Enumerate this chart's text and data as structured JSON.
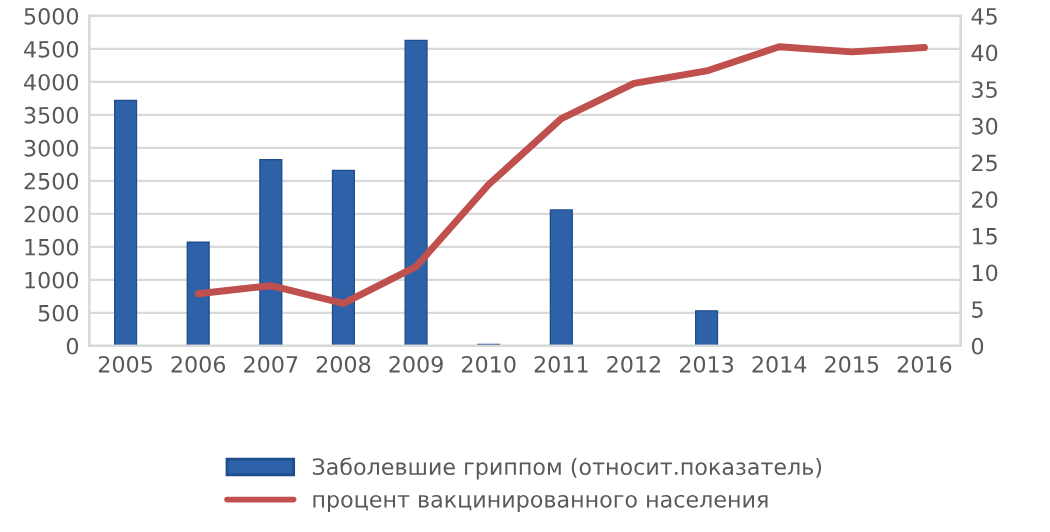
{
  "chart_data": {
    "type": "bar",
    "categories": [
      "2005",
      "2006",
      "2007",
      "2008",
      "2009",
      "2010",
      "2011",
      "2012",
      "2013",
      "2014",
      "2015",
      "2016"
    ],
    "series": [
      {
        "name": "Заболевшие гриппом (относит.показатель)",
        "color": "#2e62a8",
        "values": [
          3720,
          1570,
          2820,
          2660,
          4630,
          20,
          2060,
          null,
          530,
          null,
          null,
          null
        ]
      },
      {
        "name": "процент вакцинированного населения",
        "type": "line",
        "axis": "y2",
        "color": "#c0504d",
        "values": [
          null,
          7.1,
          8.2,
          5.8,
          10.8,
          22,
          31,
          35.8,
          37.5,
          40.8,
          40.1,
          40.7
        ]
      }
    ],
    "ylim": [
      0,
      5000
    ],
    "yticks": [
      0,
      500,
      1000,
      1500,
      2000,
      2500,
      3000,
      3500,
      4000,
      4500,
      5000
    ],
    "y2lim": [
      0,
      45
    ],
    "y2ticks": [
      0,
      5,
      10,
      15,
      20,
      25,
      30,
      35,
      40,
      45
    ],
    "grid": "y",
    "legend": "bottom"
  }
}
